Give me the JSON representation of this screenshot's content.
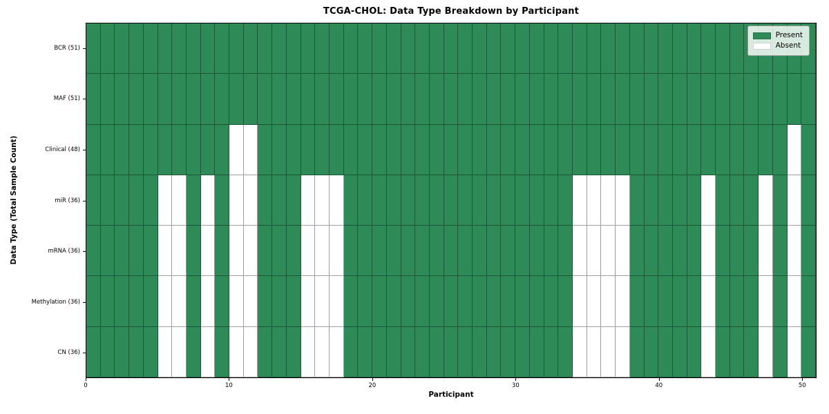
{
  "chart_data": {
    "type": "heatmap",
    "title": "TCGA-CHOL: Data Type Breakdown by Participant",
    "xlabel": "Participant",
    "ylabel": "Data Type (Total Sample Count)",
    "participants": 51,
    "x_range": [
      0,
      51
    ],
    "x_ticks": [
      0,
      10,
      20,
      30,
      40,
      50
    ],
    "x_tick_labels": [
      "0",
      "10",
      "20",
      "30",
      "40",
      "50"
    ],
    "grid_lines": "cell-edges",
    "legend_position": "upper-right",
    "rows": [
      {
        "label": "BCR (51)",
        "present_count": 51,
        "absent_columns": []
      },
      {
        "label": "MAF (51)",
        "present_count": 51,
        "absent_columns": []
      },
      {
        "label": "Clinical (48)",
        "present_count": 48,
        "absent_columns": [
          10,
          11,
          49
        ]
      },
      {
        "label": "miR (36)",
        "present_count": 36,
        "absent_columns": [
          5,
          6,
          8,
          10,
          11,
          15,
          16,
          17,
          34,
          35,
          36,
          37,
          43,
          47,
          49
        ]
      },
      {
        "label": "mRNA (36)",
        "present_count": 36,
        "absent_columns": [
          5,
          6,
          8,
          10,
          11,
          15,
          16,
          17,
          34,
          35,
          36,
          37,
          43,
          47,
          49
        ]
      },
      {
        "label": "Methylation (36)",
        "present_count": 36,
        "absent_columns": [
          5,
          6,
          8,
          10,
          11,
          15,
          16,
          17,
          34,
          35,
          36,
          37,
          43,
          47,
          49
        ]
      },
      {
        "label": "CN (36)",
        "present_count": 36,
        "absent_columns": [
          5,
          6,
          8,
          10,
          11,
          15,
          16,
          17,
          34,
          35,
          36,
          37,
          43,
          47,
          49
        ]
      }
    ],
    "legend": [
      {
        "label": "Present",
        "color": "#2e8b57"
      },
      {
        "label": "Absent",
        "color": "#ffffff"
      }
    ],
    "colors": {
      "present": "#2e8b57",
      "absent": "#ffffff",
      "cell_edge": "rgba(0,0,0,0.38)",
      "frame": "#000000"
    }
  }
}
